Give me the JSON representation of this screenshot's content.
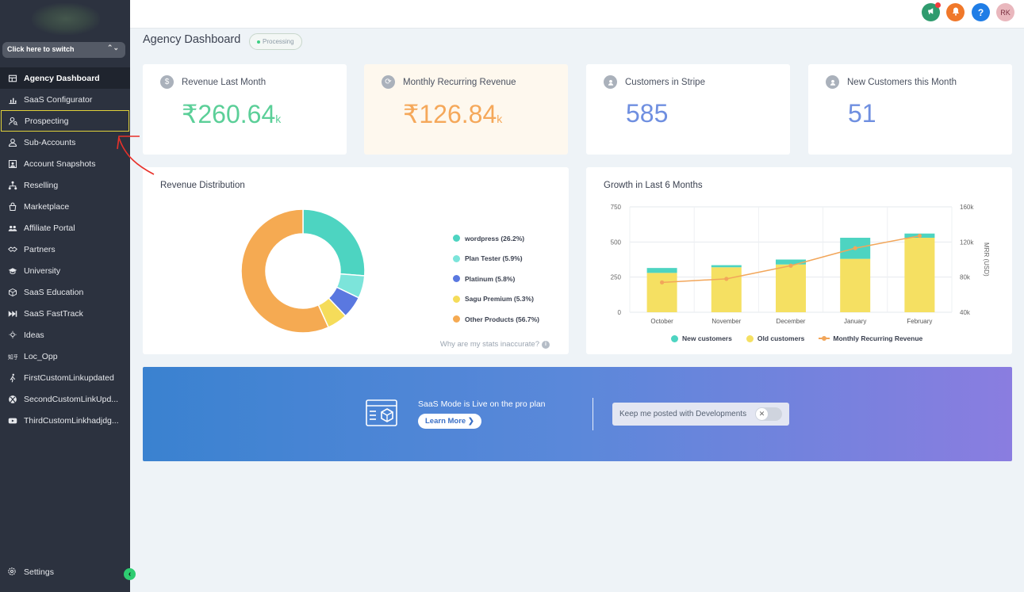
{
  "sidebar": {
    "switcher_label": "Click here to switch",
    "items": [
      {
        "label": "Agency Dashboard",
        "icon": "dashboard-icon"
      },
      {
        "label": "SaaS Configurator",
        "icon": "chart-icon"
      },
      {
        "label": "Prospecting",
        "icon": "user-search-icon"
      },
      {
        "label": "Sub-Accounts",
        "icon": "user-icon"
      },
      {
        "label": "Account Snapshots",
        "icon": "snapshot-icon"
      },
      {
        "label": "Reselling",
        "icon": "hierarchy-icon"
      },
      {
        "label": "Marketplace",
        "icon": "bag-icon"
      },
      {
        "label": "Affiliate Portal",
        "icon": "users-icon"
      },
      {
        "label": "Partners",
        "icon": "handshake-icon"
      },
      {
        "label": "University",
        "icon": "graduation-icon"
      },
      {
        "label": "SaaS Education",
        "icon": "box-icon"
      },
      {
        "label": "SaaS FastTrack",
        "icon": "fast-forward-icon"
      },
      {
        "label": "Ideas",
        "icon": "lightbulb-icon"
      },
      {
        "label": "Loc_Opp",
        "icon": "text-icon"
      },
      {
        "label": "FirstCustomLinkupdated",
        "icon": "walking-icon"
      },
      {
        "label": "SecondCustomLinkUpd...",
        "icon": "xbox-icon"
      },
      {
        "label": "ThirdCustomLinkhadjdg...",
        "icon": "youtube-icon"
      }
    ],
    "settings_label": "Settings"
  },
  "topbar": {
    "avatar_initials": "RK",
    "help_glyph": "?"
  },
  "page": {
    "title": "Agency Dashboard",
    "status": "Processing"
  },
  "stats": [
    {
      "label": "Revenue Last Month",
      "value": "₹260.64",
      "suffix": "k",
      "color": "#5bcf98"
    },
    {
      "label": "Monthly Recurring Revenue",
      "value": "₹126.84",
      "suffix": "k",
      "color": "#f5a85a"
    },
    {
      "label": "Customers in Stripe",
      "value": "585",
      "suffix": "",
      "color": "#6f8fe0"
    },
    {
      "label": "New Customers this Month",
      "value": "51",
      "suffix": "",
      "color": "#6f8fe0"
    }
  ],
  "revenue_distribution": {
    "title": "Revenue Distribution",
    "note": "Why are my stats inaccurate?"
  },
  "growth": {
    "title": "Growth in Last 6 Months"
  },
  "banner": {
    "text": "SaaS Mode is Live on the pro plan",
    "button": "Learn More ❯",
    "notify_label": "Keep me posted with Developments",
    "toggle_glyph": "✕"
  },
  "chart_data": [
    {
      "type": "pie",
      "title": "Revenue Distribution",
      "labels": [
        "wordpress (26.2%)",
        "Plan Tester (5.9%)",
        "Platinum (5.8%)",
        "Sagu Premium (5.3%)",
        "Other Products (56.7%)"
      ],
      "values": [
        26.2,
        5.9,
        5.8,
        5.3,
        56.7
      ],
      "colors": [
        "#4dd4c1",
        "#7ce4da",
        "#5a78e0",
        "#f5dc5a",
        "#f5aa52"
      ],
      "legend": "right"
    },
    {
      "type": "bar",
      "title": "Growth in Last 6 Months",
      "categories": [
        "October",
        "November",
        "December",
        "January",
        "February"
      ],
      "series": [
        {
          "name": "New customers",
          "values": [
            35,
            15,
            35,
            150,
            30
          ],
          "color": "#4dd4c1"
        },
        {
          "name": "Old customers",
          "values": [
            280,
            320,
            340,
            380,
            530
          ],
          "color": "#f5e062"
        },
        {
          "name": "Monthly Recurring Revenue",
          "values": [
            74000,
            78000,
            93000,
            113000,
            127000
          ],
          "color": "#f2a65a"
        }
      ],
      "stacked": true,
      "ylim": [
        0,
        750
      ],
      "yticks": [
        0,
        250,
        500,
        750
      ],
      "y2label": "MRR (USD)",
      "y2lim": [
        40000,
        160000
      ],
      "y2ticks": [
        "40k",
        "80k",
        "120k",
        "160k"
      ],
      "y2tick_values": [
        40000,
        80000,
        120000,
        160000
      ],
      "legend": "bottom",
      "grid": true
    }
  ]
}
